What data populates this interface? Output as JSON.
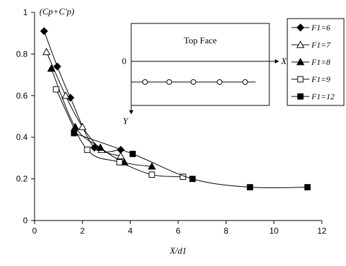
{
  "chart_data": {
    "type": "line",
    "xlabel": "X/d1",
    "ylabel": "(Cp+C'p)",
    "xlim": [
      0,
      12
    ],
    "ylim": [
      0,
      1
    ],
    "xticks": [
      "0",
      "2",
      "4",
      "6",
      "8",
      "10",
      "12"
    ],
    "yticks": [
      "0",
      "0.2",
      "0.4",
      "0.6",
      "0.8",
      "1"
    ],
    "grid": false,
    "legend_position": "right",
    "series": [
      {
        "name": "F1=6",
        "marker": "diamond-filled",
        "x": [
          0.4,
          0.95,
          1.5,
          2.5,
          3.6
        ],
        "y": [
          0.91,
          0.74,
          0.59,
          0.35,
          0.34
        ]
      },
      {
        "name": "F1=7",
        "marker": "triangle-open",
        "x": [
          0.5,
          1.3,
          2.0,
          2.8,
          3.6
        ],
        "y": [
          0.81,
          0.6,
          0.45,
          0.34,
          0.31
        ]
      },
      {
        "name": "F1=8",
        "marker": "triangle-filled",
        "x": [
          0.7,
          1.7,
          2.75,
          3.75,
          4.9
        ],
        "y": [
          0.73,
          0.45,
          0.35,
          0.28,
          0.26
        ]
      },
      {
        "name": "F1=9",
        "marker": "square-open",
        "x": [
          0.9,
          2.2,
          3.55,
          4.9,
          6.2
        ],
        "y": [
          0.63,
          0.34,
          0.28,
          0.22,
          0.21
        ]
      },
      {
        "name": "F1=12",
        "marker": "square-filled",
        "x": [
          1.65,
          4.1,
          6.6,
          9.0,
          11.4
        ],
        "y": [
          0.42,
          0.32,
          0.2,
          0.16,
          0.16
        ]
      }
    ]
  },
  "inset": {
    "title": "Top Face",
    "origin_label": "0",
    "x_axis_label": "X",
    "y_axis_label": "Y"
  }
}
